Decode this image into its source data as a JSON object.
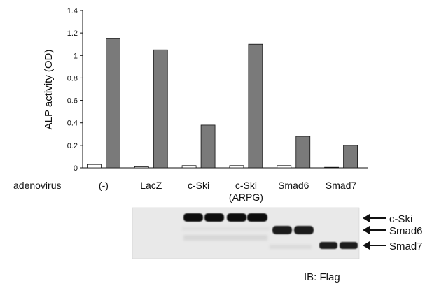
{
  "chart_data": {
    "type": "bar",
    "ylabel": "ALP activity (OD)",
    "ylim": [
      0,
      1.4
    ],
    "yticks": [
      "0",
      "0.2",
      "0.4",
      "0.6",
      "0.8",
      "1",
      "1.2",
      "1.4"
    ],
    "categories": [
      "(-)",
      "LacZ",
      "c-Ski",
      "c-Ski\n(ARPG)",
      "Smad6",
      "Smad7"
    ],
    "category_axis_label": "adenovirus",
    "series": [
      {
        "values": [
          0.03,
          0.01,
          0.02,
          0.02,
          0.02,
          0.005
        ],
        "color": "#ffffff"
      },
      {
        "values": [
          1.15,
          1.05,
          0.38,
          1.1,
          0.28,
          0.2
        ],
        "color": "#7a7a7a"
      }
    ],
    "grid": false
  },
  "blot": {
    "labels": [
      "c-Ski",
      "Smad6",
      "Smad7"
    ],
    "caption": "IB: Flag",
    "arrow_icon": "arrow-left-icon"
  }
}
